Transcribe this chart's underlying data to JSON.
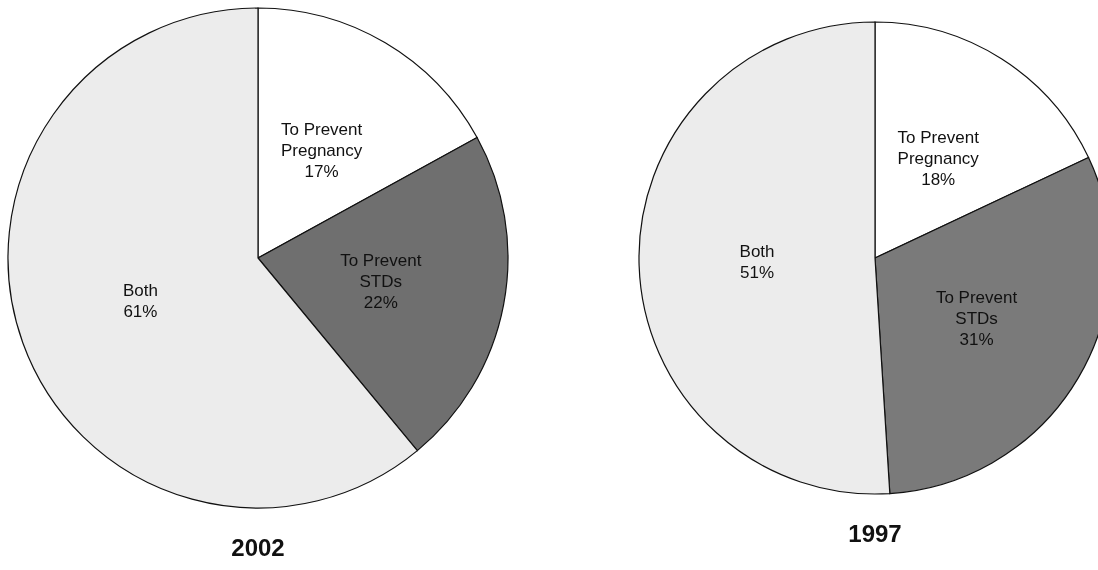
{
  "chart_data": [
    {
      "type": "pie",
      "title": "2002",
      "categories": [
        "To Prevent Pregnancy",
        "To Prevent STDs",
        "Both"
      ],
      "values": [
        17,
        22,
        61
      ],
      "value_labels": [
        "17%",
        "22%",
        "61%"
      ],
      "colors": [
        "#ffffff",
        "#6f6f6f",
        "#ececec"
      ]
    },
    {
      "type": "pie",
      "title": "1997",
      "categories": [
        "To Prevent Pregnancy",
        "To Prevent STDs",
        "Both"
      ],
      "values": [
        18,
        31,
        51
      ],
      "value_labels": [
        "18%",
        "31%",
        "51%"
      ],
      "colors": [
        "#ffffff",
        "#7a7a7a",
        "#ececec"
      ]
    }
  ]
}
